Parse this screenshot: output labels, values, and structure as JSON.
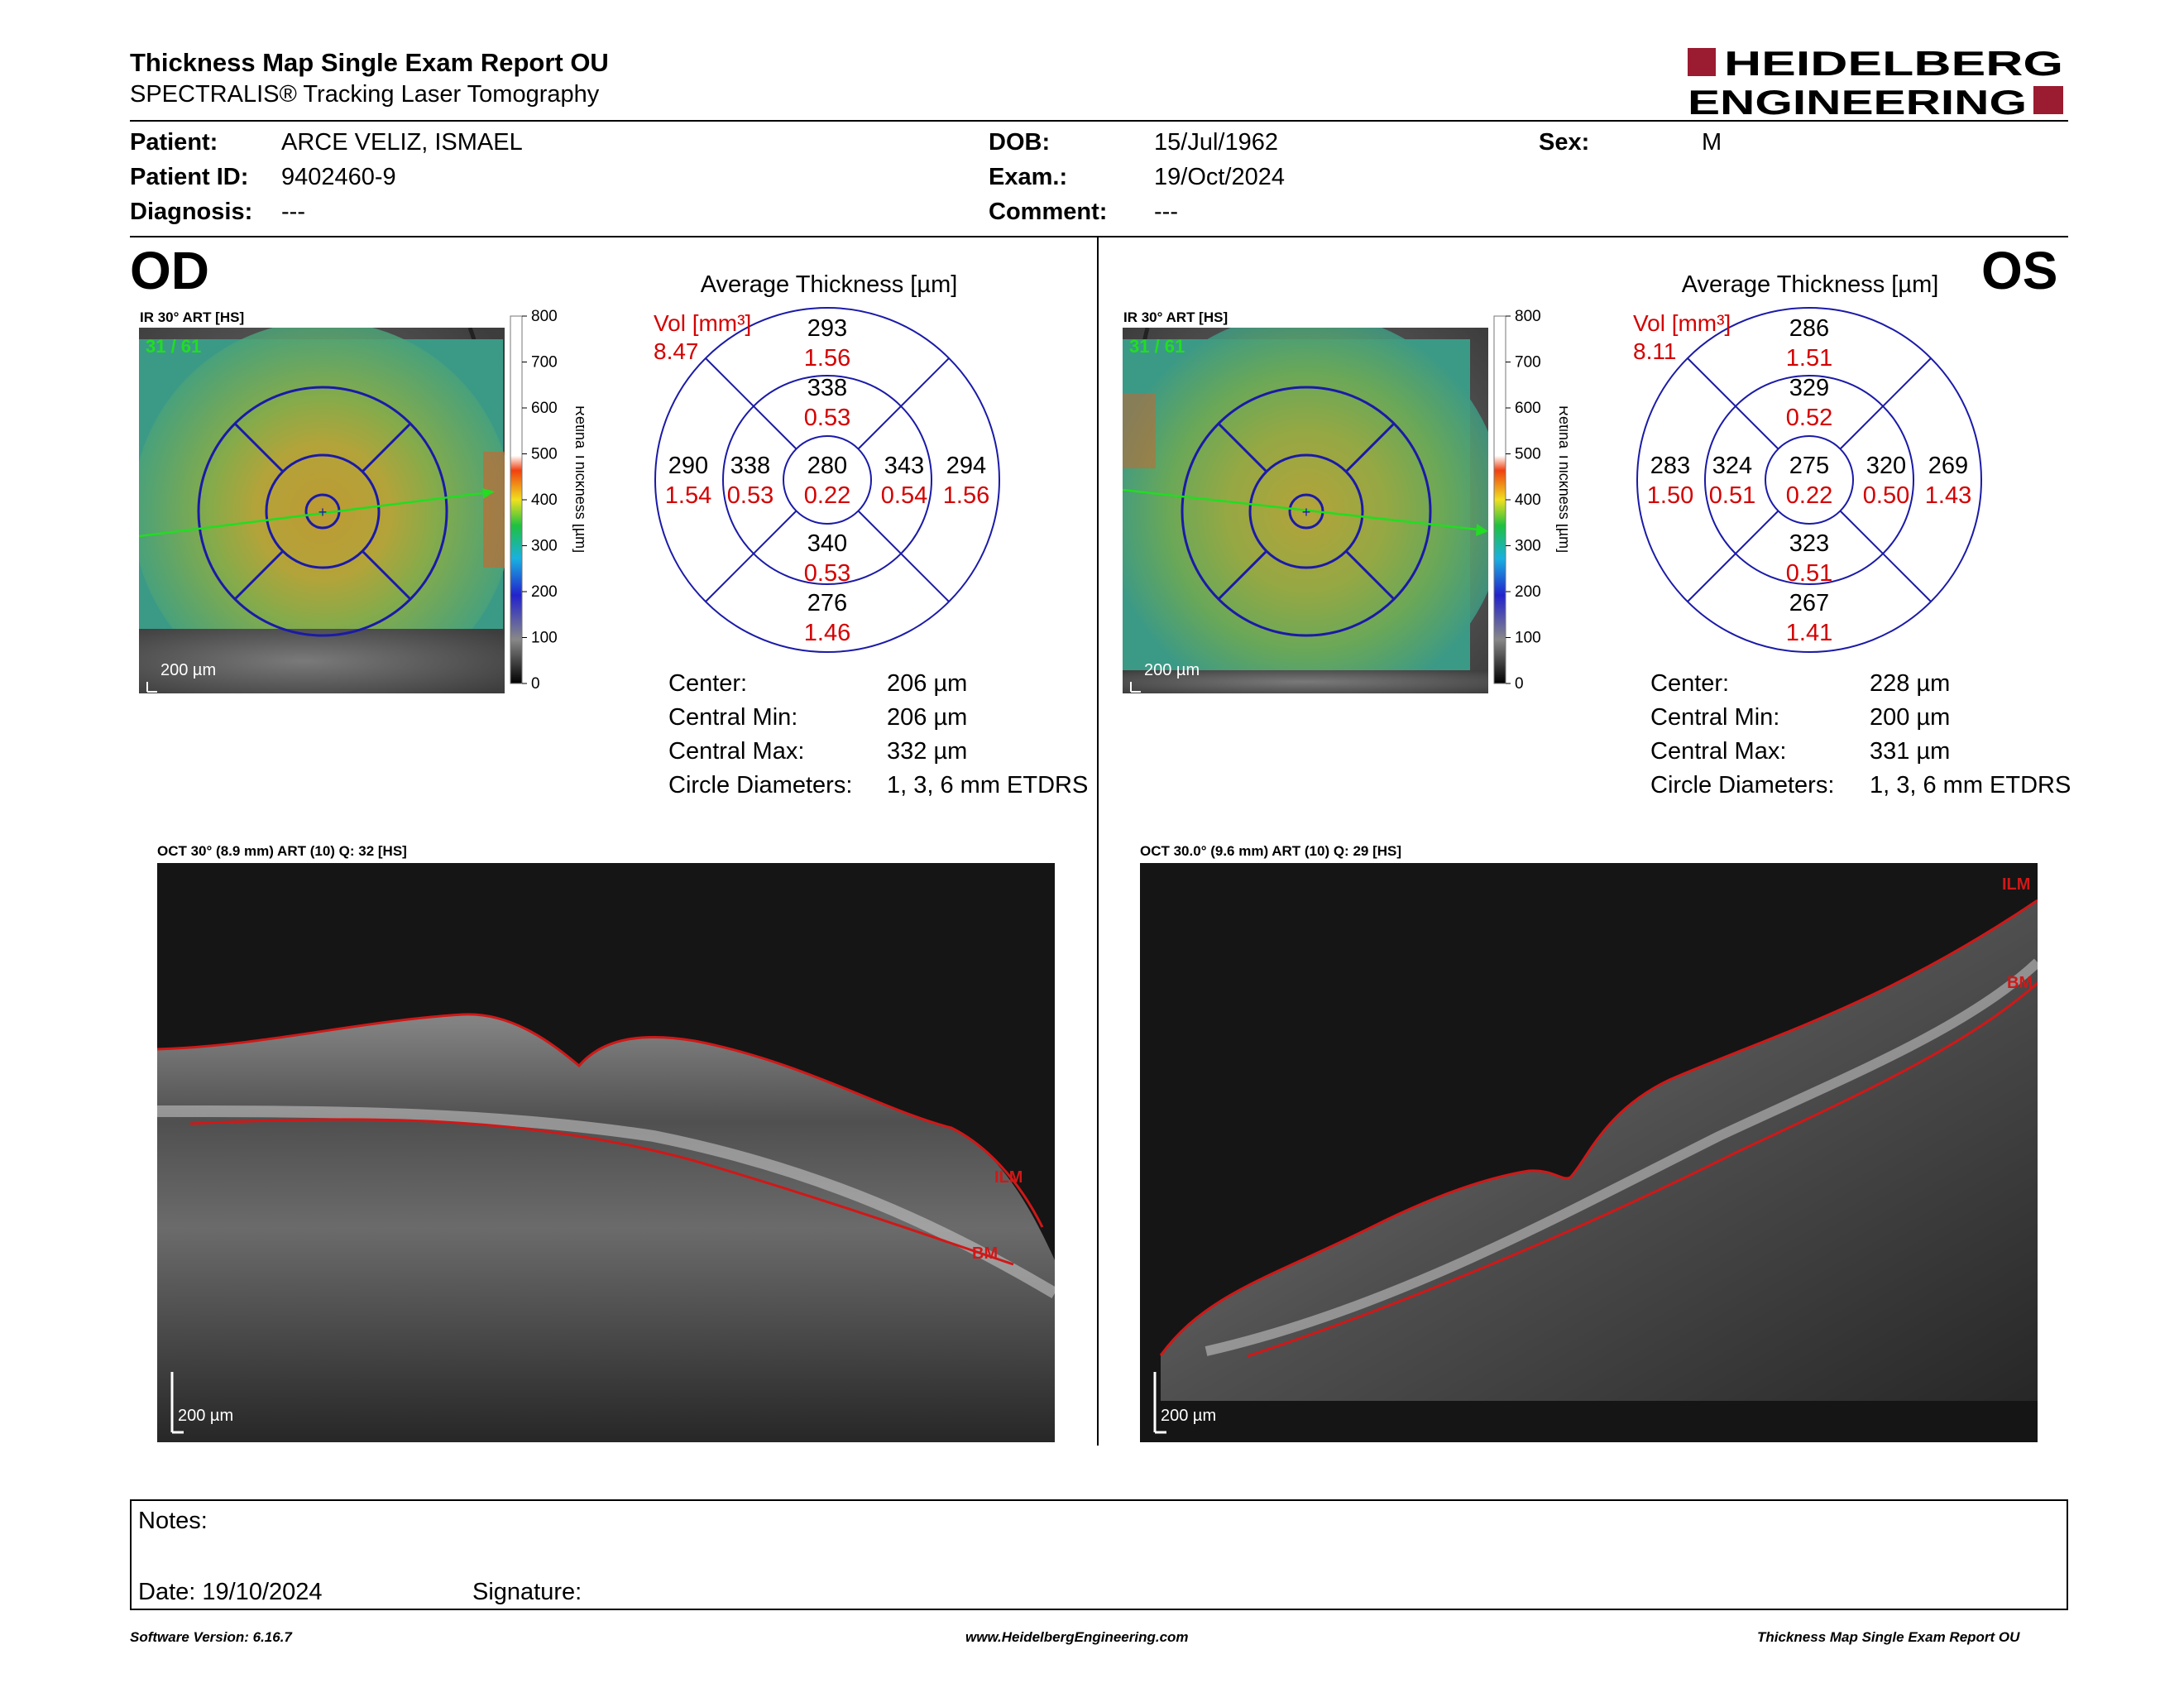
{
  "header": {
    "title": "Thickness Map Single Exam Report OU",
    "subtitle": "SPECTRALIS® Tracking Laser Tomography",
    "logo_line1": "HEIDELBERG",
    "logo_line2": "ENGINEERING"
  },
  "patient": {
    "patient_label": "Patient:",
    "patient_value": "ARCE VELIZ, ISMAEL",
    "id_label": "Patient ID:",
    "id_value": "9402460-9",
    "diagnosis_label": "Diagnosis:",
    "diagnosis_value": "---",
    "dob_label": "DOB:",
    "dob_value": "15/Jul/1962",
    "exam_label": "Exam.:",
    "exam_value": "19/Oct/2024",
    "comment_label": "Comment:",
    "comment_value": "---",
    "sex_label": "Sex:",
    "sex_value": "M"
  },
  "colorbar": {
    "ticks": [
      "800",
      "700",
      "600",
      "500",
      "400",
      "300",
      "200",
      "100",
      "0"
    ],
    "label": "Retina Thickness [µm]"
  },
  "od": {
    "tag": "OD",
    "ir_title": "IR 30° ART [HS]",
    "ir_frame": "31 / 61",
    "scale": "200 µm",
    "avg_title": "Average Thickness [µm]",
    "vol_label": "Vol [mm³]",
    "vol_value": "8.47",
    "sectors": {
      "outer_sup": [
        "293",
        "1.56"
      ],
      "inner_sup": [
        "338",
        "0.53"
      ],
      "outer_temp": [
        "290",
        "1.54"
      ],
      "inner_temp": [
        "338",
        "0.53"
      ],
      "center": [
        "280",
        "0.22"
      ],
      "inner_nasal": [
        "343",
        "0.54"
      ],
      "outer_nasal": [
        "294",
        "1.56"
      ],
      "inner_inf": [
        "340",
        "0.53"
      ],
      "outer_inf": [
        "276",
        "1.46"
      ]
    },
    "stats": {
      "center_label": "Center:",
      "center_value": "206 µm",
      "min_label": "Central Min:",
      "min_value": "206 µm",
      "max_label": "Central Max:",
      "max_value": "332 µm",
      "diam_label": "Circle Diameters:",
      "diam_value": "1, 3, 6 mm ETDRS"
    },
    "oct_title": "OCT 30° (8.9 mm) ART (10) Q: 32 [HS]",
    "ilm": "ILM",
    "bm": "BM",
    "oct_scale": "200 µm"
  },
  "os": {
    "tag": "OS",
    "ir_title": "IR 30° ART [HS]",
    "ir_frame": "31 / 61",
    "scale": "200 µm",
    "avg_title": "Average Thickness [µm]",
    "vol_label": "Vol [mm³]",
    "vol_value": "8.11",
    "sectors": {
      "outer_sup": [
        "286",
        "1.51"
      ],
      "inner_sup": [
        "329",
        "0.52"
      ],
      "outer_temp": [
        "283",
        "1.50"
      ],
      "inner_temp": [
        "324",
        "0.51"
      ],
      "center": [
        "275",
        "0.22"
      ],
      "inner_nasal": [
        "320",
        "0.50"
      ],
      "outer_nasal": [
        "269",
        "1.43"
      ],
      "inner_inf": [
        "323",
        "0.51"
      ],
      "outer_inf": [
        "267",
        "1.41"
      ]
    },
    "stats": {
      "center_label": "Center:",
      "center_value": "228 µm",
      "min_label": "Central Min:",
      "min_value": "200 µm",
      "max_label": "Central Max:",
      "max_value": "331 µm",
      "diam_label": "Circle Diameters:",
      "diam_value": "1, 3, 6 mm ETDRS"
    },
    "oct_title": "OCT 30.0° (9.6 mm) ART (10) Q: 29 [HS]",
    "ilm": "ILM",
    "bm": "BM",
    "oct_scale": "200 µm"
  },
  "notes": {
    "notes_label": "Notes:",
    "date_label": "Date: 19/10/2024",
    "signature_label": "Signature:"
  },
  "footer": {
    "left": "Software Version: 6.16.7",
    "center": "www.HeidelbergEngineering.com",
    "right": "Thickness Map Single Exam Report OU"
  },
  "colors": {
    "ring_blue": "#1a1aa8",
    "vol_red": "#d40000",
    "brand_red": "#9b1b30",
    "segment_red": "#d01818",
    "scan_green": "#22dd22"
  }
}
